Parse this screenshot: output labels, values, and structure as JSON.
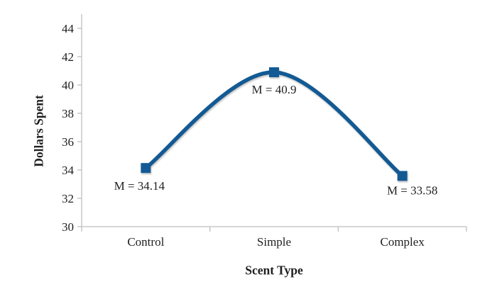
{
  "chart_data": {
    "type": "line",
    "title": "",
    "categories": [
      "Control",
      "Simple",
      "Complex"
    ],
    "values": [
      34.14,
      40.9,
      33.58
    ],
    "point_labels": [
      "M = 34.14",
      "M = 40.9",
      "M = 33.58"
    ],
    "xlabel": "Scent Type",
    "ylabel": "Dollars Spent",
    "ylim": [
      30,
      45
    ],
    "yticks": [
      30,
      32,
      34,
      36,
      38,
      40,
      42,
      44
    ],
    "legend": "none",
    "grid": false,
    "smooth": true,
    "marker": "square",
    "colors": {
      "line": "#135A94",
      "text": "#1f1f1f",
      "axis": "#bfbfbf",
      "background": "#ffffff"
    }
  }
}
